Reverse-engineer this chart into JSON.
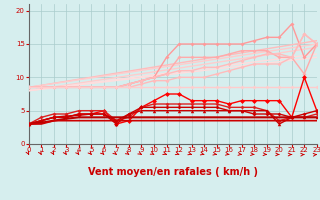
{
  "xlabel": "Vent moyen/en rafales ( km/h )",
  "background_color": "#d6eeee",
  "grid_color": "#aacccc",
  "x_ticks": [
    0,
    1,
    2,
    3,
    4,
    5,
    6,
    7,
    8,
    9,
    10,
    11,
    12,
    13,
    14,
    15,
    16,
    17,
    18,
    19,
    20,
    21,
    22,
    23
  ],
  "ylim": [
    0,
    21
  ],
  "xlim": [
    0,
    23
  ],
  "series": [
    {
      "comment": "straight pale pink line top - rafale relationship",
      "x": [
        0,
        23
      ],
      "y": [
        8.5,
        15.5
      ],
      "color": "#ffbbbb",
      "lw": 1.0,
      "marker": null
    },
    {
      "comment": "straight pale pink line 2",
      "x": [
        0,
        23
      ],
      "y": [
        8.5,
        15.0
      ],
      "color": "#ffcccc",
      "lw": 1.0,
      "marker": null
    },
    {
      "comment": "straight pale pink line 3",
      "x": [
        0,
        23
      ],
      "y": [
        8.0,
        14.5
      ],
      "color": "#ffcccc",
      "lw": 1.0,
      "marker": null
    },
    {
      "comment": "straight pale pink line 4",
      "x": [
        0,
        23
      ],
      "y": [
        8.0,
        13.5
      ],
      "color": "#ffdddd",
      "lw": 1.0,
      "marker": null
    },
    {
      "comment": "straight pale pink line 5",
      "x": [
        0,
        23
      ],
      "y": [
        8.0,
        13.0
      ],
      "color": "#ffdddd",
      "lw": 1.0,
      "marker": null
    },
    {
      "comment": "measured rafales with markers - zigzag top",
      "x": [
        0,
        1,
        2,
        3,
        4,
        5,
        6,
        7,
        8,
        9,
        10,
        11,
        12,
        13,
        14,
        15,
        16,
        17,
        18,
        19,
        20,
        21,
        22,
        23
      ],
      "y": [
        8.5,
        8.5,
        8.5,
        8.5,
        8.5,
        8.5,
        8.5,
        8.5,
        9,
        9.5,
        10,
        13,
        15,
        15,
        15,
        15,
        15,
        15,
        15.5,
        16,
        16,
        18,
        13,
        15
      ],
      "color": "#ff9999",
      "lw": 1.0,
      "marker": "D",
      "ms": 2.0
    },
    {
      "comment": "measured rafales line 2",
      "x": [
        0,
        1,
        2,
        3,
        4,
        5,
        6,
        7,
        8,
        9,
        10,
        11,
        12,
        13,
        14,
        15,
        16,
        17,
        18,
        19,
        20,
        21,
        22,
        23
      ],
      "y": [
        8.5,
        8.5,
        8.5,
        8.5,
        8.5,
        8.5,
        8.5,
        8.5,
        9,
        9.5,
        10,
        10.5,
        13,
        13,
        13,
        13,
        13.5,
        14,
        14,
        14,
        13,
        13,
        10.5,
        15
      ],
      "color": "#ffaaaa",
      "lw": 1.0,
      "marker": "D",
      "ms": 2.0
    },
    {
      "comment": "measured rafales line 3",
      "x": [
        0,
        1,
        2,
        3,
        4,
        5,
        6,
        7,
        8,
        9,
        10,
        11,
        12,
        13,
        14,
        15,
        16,
        17,
        18,
        19,
        20,
        21,
        22,
        23
      ],
      "y": [
        8.5,
        8.5,
        8.5,
        8.5,
        8.5,
        8.5,
        8.5,
        8.5,
        9,
        9.5,
        10,
        10.5,
        11,
        11,
        11.5,
        11.5,
        12,
        12.5,
        13,
        13.5,
        13.5,
        13,
        16.5,
        15
      ],
      "color": "#ffbbbb",
      "lw": 1.0,
      "marker": "D",
      "ms": 2.0
    },
    {
      "comment": "measured rafales line 4",
      "x": [
        0,
        1,
        2,
        3,
        4,
        5,
        6,
        7,
        8,
        9,
        10,
        11,
        12,
        13,
        14,
        15,
        16,
        17,
        18,
        19,
        20,
        21,
        22,
        23
      ],
      "y": [
        8.5,
        8.5,
        8.5,
        8.5,
        8.5,
        8.5,
        8.5,
        8.5,
        8.5,
        9,
        9.5,
        9.5,
        10,
        10,
        10,
        10.5,
        11,
        11.5,
        12,
        12,
        12,
        13,
        16.5,
        15
      ],
      "color": "#ffbbbb",
      "lw": 1.0,
      "marker": "D",
      "ms": 2.0
    },
    {
      "comment": "measured rafales line 5 flat",
      "x": [
        0,
        1,
        2,
        3,
        4,
        5,
        6,
        7,
        8,
        9,
        10,
        11,
        12,
        13,
        14,
        15,
        16,
        17,
        18,
        19,
        20,
        21,
        22,
        23
      ],
      "y": [
        8.5,
        8.5,
        8.5,
        8.5,
        8.5,
        8.5,
        8.5,
        8.5,
        8.5,
        8.5,
        8.5,
        8.5,
        8.5,
        8.5,
        8.5,
        8.5,
        8.5,
        8.5,
        8.5,
        8.5,
        8.5,
        8.5,
        8.5,
        8.5
      ],
      "color": "#ffcccc",
      "lw": 1.0,
      "marker": "D",
      "ms": 2.0
    },
    {
      "comment": "dark red - vent moyen with big spike at 22",
      "x": [
        0,
        1,
        2,
        3,
        4,
        5,
        6,
        7,
        8,
        9,
        10,
        11,
        12,
        13,
        14,
        15,
        16,
        17,
        18,
        19,
        20,
        21,
        22,
        23
      ],
      "y": [
        3,
        3.5,
        4,
        4,
        4.5,
        4.5,
        5,
        3,
        3.5,
        5.5,
        6.5,
        7.5,
        7.5,
        6.5,
        6.5,
        6.5,
        6,
        6.5,
        6.5,
        6.5,
        6.5,
        4,
        10,
        5
      ],
      "color": "#ff0000",
      "lw": 1.0,
      "marker": "D",
      "ms": 2.5
    },
    {
      "comment": "dark red line 2",
      "x": [
        0,
        1,
        2,
        3,
        4,
        5,
        6,
        7,
        8,
        9,
        10,
        11,
        12,
        13,
        14,
        15,
        16,
        17,
        18,
        19,
        20,
        21,
        22,
        23
      ],
      "y": [
        3,
        4,
        4.5,
        4.5,
        5,
        5,
        5,
        3.5,
        4,
        5.5,
        6,
        6,
        6,
        6,
        6,
        6,
        5.5,
        5.5,
        5.5,
        5,
        3.5,
        4,
        4,
        4.5
      ],
      "color": "#dd2222",
      "lw": 1.0,
      "marker": "D",
      "ms": 2.0
    },
    {
      "comment": "dark red line 3 triangle markers",
      "x": [
        0,
        1,
        2,
        3,
        4,
        5,
        6,
        7,
        8,
        9,
        10,
        11,
        12,
        13,
        14,
        15,
        16,
        17,
        18,
        19,
        20,
        21,
        22,
        23
      ],
      "y": [
        3,
        3.5,
        4,
        4,
        4.5,
        4.5,
        4.5,
        3,
        4.5,
        5,
        5,
        5,
        5,
        5,
        5,
        5,
        5,
        5,
        5,
        5,
        3,
        4,
        4,
        4
      ],
      "color": "#cc0000",
      "lw": 1.0,
      "marker": "^",
      "ms": 2.5
    },
    {
      "comment": "dark red line 4 with diamond markers",
      "x": [
        0,
        1,
        2,
        3,
        4,
        5,
        6,
        7,
        8,
        9,
        10,
        11,
        12,
        13,
        14,
        15,
        16,
        17,
        18,
        19,
        20,
        21,
        22,
        23
      ],
      "y": [
        3,
        3.5,
        4,
        4.2,
        4.3,
        4.5,
        4.5,
        3.5,
        4.5,
        5.5,
        5.5,
        5.5,
        5.5,
        5.5,
        5.5,
        5.5,
        5,
        5,
        4.5,
        4.5,
        4.5,
        4,
        4.5,
        5
      ],
      "color": "#cc0000",
      "lw": 1.0,
      "marker": "D",
      "ms": 2.0
    },
    {
      "comment": "flat dark line at ~4",
      "x": [
        0,
        1,
        2,
        3,
        4,
        5,
        6,
        7,
        8,
        9,
        10,
        11,
        12,
        13,
        14,
        15,
        16,
        17,
        18,
        19,
        20,
        21,
        22,
        23
      ],
      "y": [
        3,
        3.2,
        3.5,
        3.8,
        4,
        4,
        4,
        4,
        4,
        4,
        4,
        4,
        4,
        4,
        4,
        4,
        4,
        4,
        4,
        4,
        4,
        4,
        4,
        4
      ],
      "color": "#bb0000",
      "lw": 1.5,
      "marker": null
    },
    {
      "comment": "very flat dark line at ~3.5",
      "x": [
        0,
        1,
        2,
        3,
        4,
        5,
        6,
        7,
        8,
        9,
        10,
        11,
        12,
        13,
        14,
        15,
        16,
        17,
        18,
        19,
        20,
        21,
        22,
        23
      ],
      "y": [
        3,
        3,
        3.5,
        3.5,
        3.5,
        3.5,
        3.5,
        3.5,
        3.5,
        3.5,
        3.5,
        3.5,
        3.5,
        3.5,
        3.5,
        3.5,
        3.5,
        3.5,
        3.5,
        3.5,
        3.5,
        3.5,
        3.5,
        3.5
      ],
      "color": "#cc0000",
      "lw": 1.2,
      "marker": null
    }
  ],
  "tick_fontsize": 5,
  "xlabel_fontsize": 7,
  "arrow_angles": [
    -60,
    -57,
    -54,
    -51,
    -48,
    -44,
    -40,
    -36,
    -32,
    -28,
    -24,
    -20,
    -18,
    -16,
    -14,
    -12,
    -10,
    -8,
    -6,
    -4,
    -2,
    0,
    2,
    4
  ]
}
